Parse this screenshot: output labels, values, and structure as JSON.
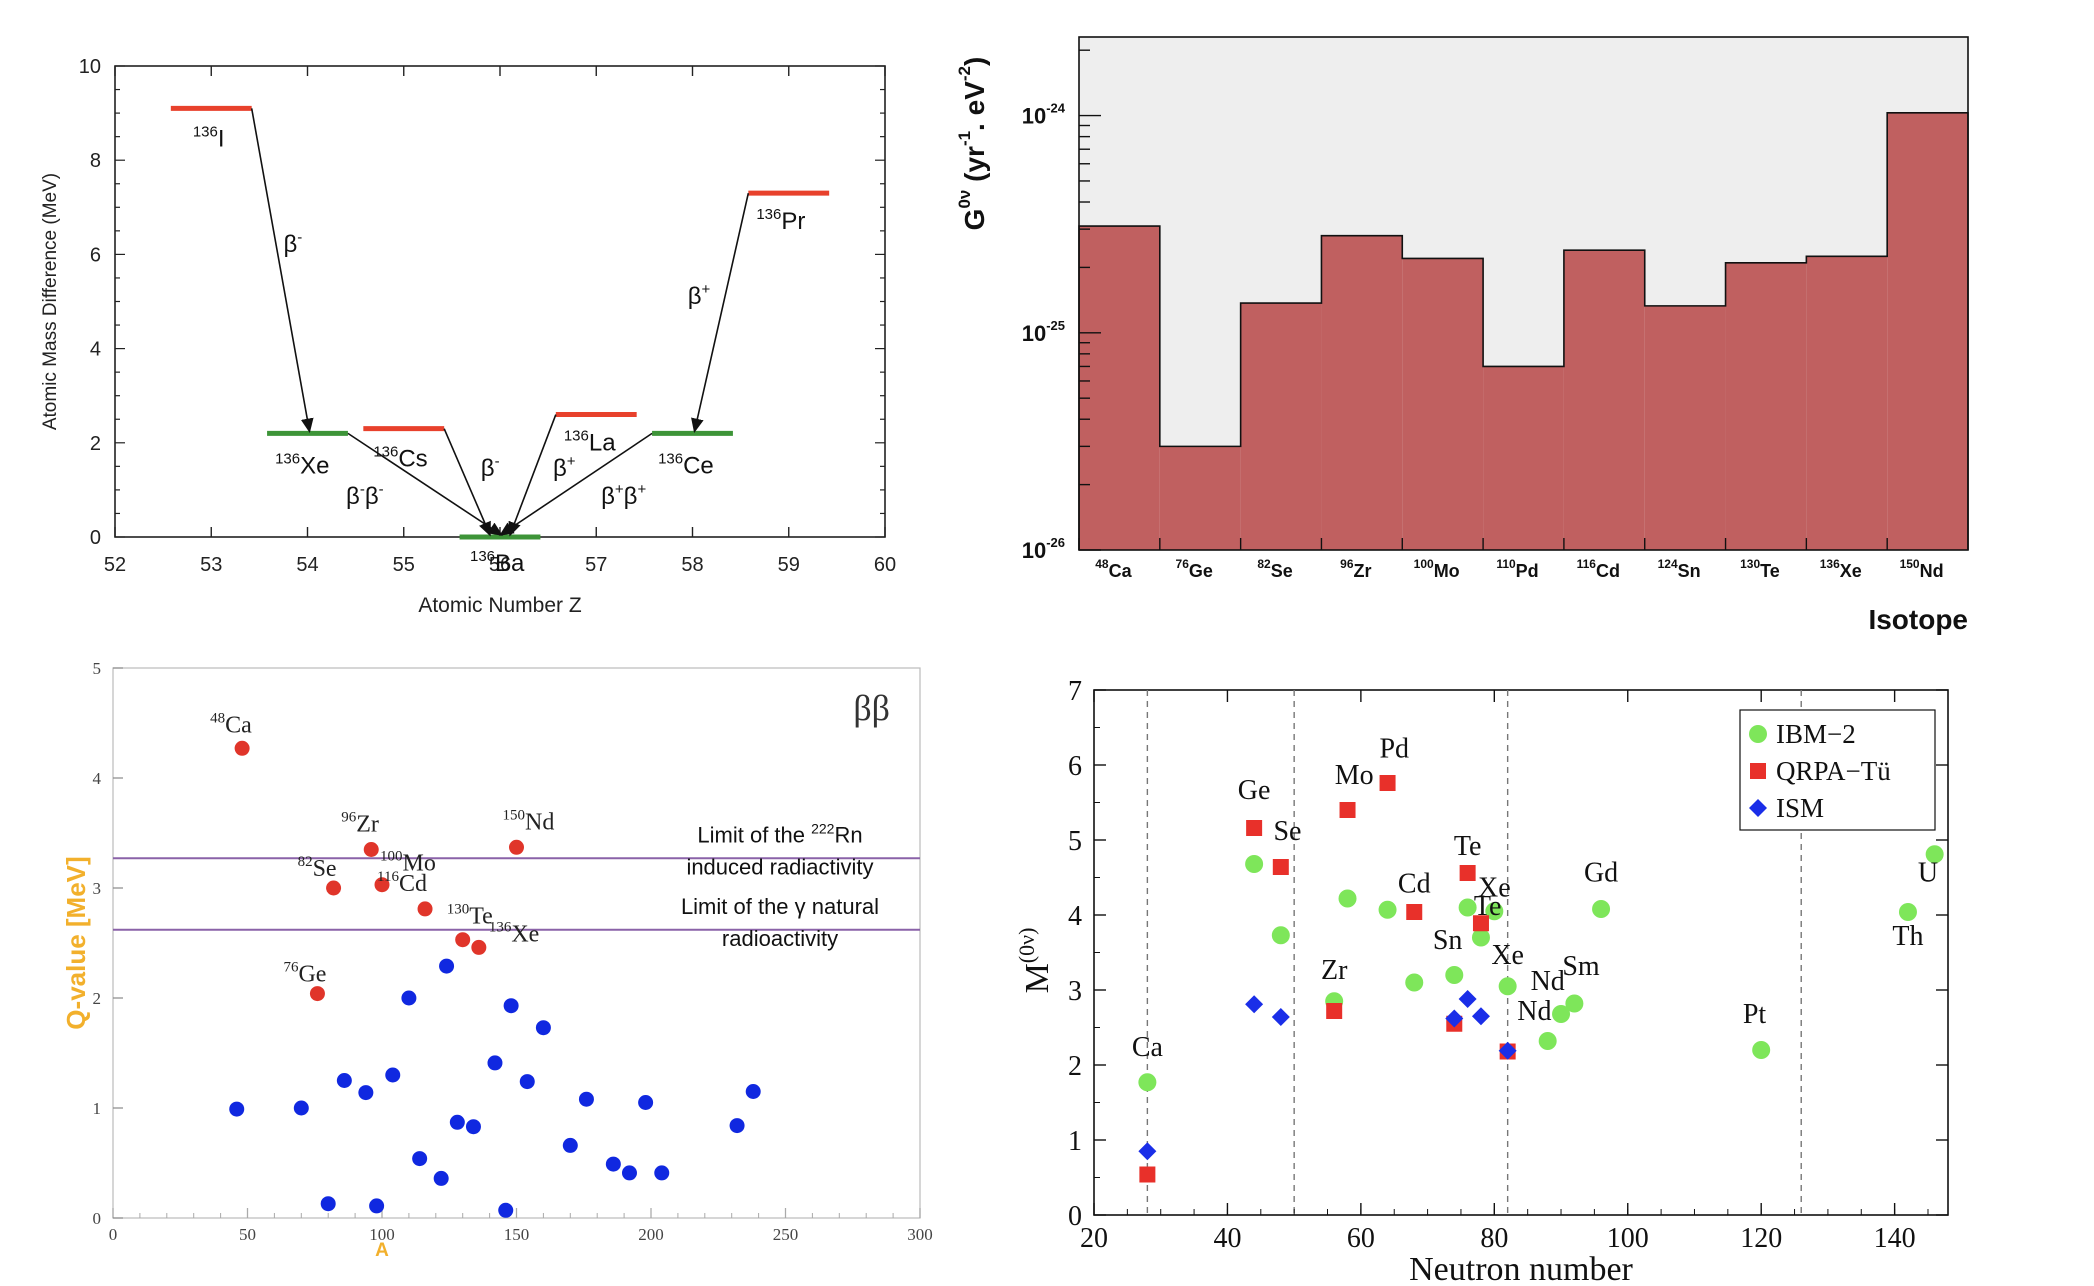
{
  "chart_data": [
    {
      "type": "scatter",
      "xlabel": "Atomic Number Z",
      "ylabel": "Atomic Mass Difference (MeV)",
      "xlim": [
        52,
        60
      ],
      "ylim": [
        0,
        10
      ],
      "xticks": [
        "52",
        "53",
        "54",
        "55",
        "56",
        "57",
        "58",
        "59",
        "60"
      ],
      "yticks": [
        "0",
        "2",
        "4",
        "6",
        "8",
        "10"
      ],
      "levels": [
        {
          "pre": "136",
          "label": "I",
          "z": 53,
          "mev": 9.1,
          "color": "#e8412c"
        },
        {
          "pre": "136",
          "label": "Xe",
          "z": 54,
          "mev": 2.2,
          "color": "#3d9438"
        },
        {
          "pre": "136",
          "label": "Cs",
          "z": 55,
          "mev": 2.3,
          "color": "#e8412c"
        },
        {
          "pre": "136",
          "label": "Ba",
          "z": 56,
          "mev": 0.0,
          "color": "#3d9438"
        },
        {
          "pre": "136",
          "label": "La",
          "z": 57,
          "mev": 2.6,
          "color": "#e8412c"
        },
        {
          "pre": "136",
          "label": "Ce",
          "z": 58,
          "mev": 2.2,
          "color": "#3d9438"
        },
        {
          "pre": "136",
          "label": "Pr",
          "z": 59,
          "mev": 7.3,
          "color": "#e8412c"
        }
      ],
      "transitions": [
        {
          "from": "I",
          "to": "Xe",
          "label": "β",
          "sup": "-"
        },
        {
          "from": "Cs",
          "to": "Ba",
          "label": "β",
          "sup": "-"
        },
        {
          "from": "La",
          "to": "Ba",
          "label": "β",
          "sup": "+"
        },
        {
          "from": "Pr",
          "to": "Ce",
          "label": "β",
          "sup": "+"
        },
        {
          "from": "Xe",
          "to": "Ba",
          "label": "β",
          "sup": "-",
          "label2": "β",
          "sup2": "-"
        },
        {
          "from": "Ce",
          "to": "Ba",
          "label": "β",
          "sup": "+",
          "label2": "β",
          "sup2": "+"
        }
      ]
    },
    {
      "type": "bar",
      "xlabel": "Isotope",
      "ylabel": "G",
      "ylabel_sup": "0ν",
      "ylabel_units": "(yr",
      "ylabel_units_sup1": "-1",
      "ylabel_units_mid": ". eV",
      "ylabel_units_sup2": "-2",
      "ylabel_units_end": ")",
      "yscale": "log",
      "ylim": [
        1e-26,
        2.3e-24
      ],
      "yticks": [
        {
          "base": "10",
          "exp": "-26",
          "value": 1e-26
        },
        {
          "base": "10",
          "exp": "-25",
          "value": 1e-25
        },
        {
          "base": "10",
          "exp": "-24",
          "value": 1e-24
        }
      ],
      "categories": [
        {
          "pre": "48",
          "name": "Ca"
        },
        {
          "pre": "76",
          "name": "Ge"
        },
        {
          "pre": "82",
          "name": "Se"
        },
        {
          "pre": "96",
          "name": "Zr"
        },
        {
          "pre": "100",
          "name": "Mo"
        },
        {
          "pre": "110",
          "name": "Pd"
        },
        {
          "pre": "116",
          "name": "Cd"
        },
        {
          "pre": "124",
          "name": "Sn"
        },
        {
          "pre": "130",
          "name": "Te"
        },
        {
          "pre": "136",
          "name": "Xe"
        },
        {
          "pre": "150",
          "name": "Nd"
        }
      ],
      "values": [
        3.1e-25,
        3e-26,
        1.37e-25,
        2.8e-25,
        2.2e-25,
        7e-26,
        2.4e-25,
        1.33e-25,
        2.1e-25,
        2.25e-25,
        1.03e-24
      ],
      "colors": {
        "bar": "#c06060",
        "background": "#eeeeee"
      }
    },
    {
      "type": "scatter",
      "xlabel": "A",
      "ylabel": "Q-value [MeV]",
      "xlim": [
        0,
        300
      ],
      "ylim": [
        0,
        5
      ],
      "title": "ββ",
      "xticks": [
        "0",
        "50",
        "100",
        "150",
        "200",
        "250",
        "300"
      ],
      "yticks": [
        "0",
        "1",
        "2",
        "3",
        "4",
        "5"
      ],
      "hlines": [
        {
          "y": 3.27,
          "text": "Limit of the ",
          "sup": "222",
          "text_end": "Rn",
          "line2": "induced radiactivity"
        },
        {
          "y": 2.62,
          "text": "Limit of the γ natural",
          "line2": "radioactivity"
        }
      ],
      "red_points": [
        {
          "x": 48,
          "y": 4.27,
          "pre": "48",
          "name": "Ca"
        },
        {
          "x": 76,
          "y": 2.04,
          "pre": "76",
          "name": "Ge"
        },
        {
          "x": 82,
          "y": 3.0,
          "pre": "82",
          "name": "Se"
        },
        {
          "x": 96,
          "y": 3.35,
          "pre": "96",
          "name": "Zr"
        },
        {
          "x": 100,
          "y": 3.03,
          "pre": "100",
          "name": "Mo"
        },
        {
          "x": 116,
          "y": 2.81,
          "pre": "116",
          "name": "Cd"
        },
        {
          "x": 130,
          "y": 2.53,
          "pre": "130",
          "name": "Te"
        },
        {
          "x": 136,
          "y": 2.46,
          "pre": "136",
          "name": "Xe"
        },
        {
          "x": 150,
          "y": 3.37,
          "pre": "150",
          "name": "Nd"
        }
      ],
      "blue_points": [
        {
          "x": 46,
          "y": 0.99
        },
        {
          "x": 70,
          "y": 1.0
        },
        {
          "x": 80,
          "y": 0.13
        },
        {
          "x": 86,
          "y": 1.25
        },
        {
          "x": 94,
          "y": 1.14
        },
        {
          "x": 98,
          "y": 0.11
        },
        {
          "x": 104,
          "y": 1.3
        },
        {
          "x": 110,
          "y": 2.0
        },
        {
          "x": 114,
          "y": 0.54
        },
        {
          "x": 122,
          "y": 0.36
        },
        {
          "x": 124,
          "y": 2.29
        },
        {
          "x": 128,
          "y": 0.87
        },
        {
          "x": 134,
          "y": 0.83
        },
        {
          "x": 142,
          "y": 1.41
        },
        {
          "x": 146,
          "y": 0.07
        },
        {
          "x": 148,
          "y": 1.93
        },
        {
          "x": 154,
          "y": 1.24
        },
        {
          "x": 160,
          "y": 1.73
        },
        {
          "x": 170,
          "y": 0.66
        },
        {
          "x": 176,
          "y": 1.08
        },
        {
          "x": 186,
          "y": 0.49
        },
        {
          "x": 192,
          "y": 0.41
        },
        {
          "x": 198,
          "y": 1.05
        },
        {
          "x": 204,
          "y": 0.41
        },
        {
          "x": 232,
          "y": 0.84
        },
        {
          "x": 238,
          "y": 1.15
        }
      ]
    },
    {
      "type": "scatter",
      "xlabel": "Neutron number",
      "ylabel": "M",
      "ylabel_sup": "(0ν)",
      "xlim": [
        20,
        148
      ],
      "ylim": [
        0,
        7
      ],
      "xticks": [
        "20",
        "40",
        "60",
        "80",
        "100",
        "120",
        "140"
      ],
      "yticks": [
        "0",
        "1",
        "2",
        "3",
        "4",
        "5",
        "6",
        "7"
      ],
      "vlines": [
        28,
        50,
        82,
        126
      ],
      "legend": {
        "position": "top-right",
        "entries": [
          "IBM−2",
          "QRPA−Tü",
          "ISM"
        ]
      },
      "series": [
        {
          "name": "IBM−2",
          "color": "#7ee65a",
          "marker": "circle",
          "points": [
            {
              "x": 28,
              "y": 1.77
            },
            {
              "x": 44,
              "y": 4.68
            },
            {
              "x": 48,
              "y": 3.73
            },
            {
              "x": 58,
              "y": 4.22
            },
            {
              "x": 56,
              "y": 2.85
            },
            {
              "x": 64,
              "y": 4.07
            },
            {
              "x": 68,
              "y": 3.1
            },
            {
              "x": 74,
              "y": 3.2
            },
            {
              "x": 76,
              "y": 4.1
            },
            {
              "x": 78,
              "y": 3.7
            },
            {
              "x": 80,
              "y": 4.05
            },
            {
              "x": 82,
              "y": 3.05
            },
            {
              "x": 88,
              "y": 2.32
            },
            {
              "x": 90,
              "y": 2.68
            },
            {
              "x": 92,
              "y": 2.82
            },
            {
              "x": 96,
              "y": 4.08
            },
            {
              "x": 120,
              "y": 2.2
            },
            {
              "x": 142,
              "y": 4.04
            },
            {
              "x": 146,
              "y": 4.81
            }
          ]
        },
        {
          "name": "QRPA−Tü",
          "color": "#e8302a",
          "marker": "square",
          "points": [
            {
              "x": 28,
              "y": 0.54
            },
            {
              "x": 44,
              "y": 5.16
            },
            {
              "x": 48,
              "y": 4.64
            },
            {
              "x": 56,
              "y": 2.72
            },
            {
              "x": 58,
              "y": 5.4
            },
            {
              "x": 64,
              "y": 5.76
            },
            {
              "x": 68,
              "y": 4.04
            },
            {
              "x": 74,
              "y": 2.55
            },
            {
              "x": 76,
              "y": 4.56
            },
            {
              "x": 78,
              "y": 3.89
            },
            {
              "x": 82,
              "y": 2.18
            }
          ]
        },
        {
          "name": "ISM",
          "color": "#1a2ee8",
          "marker": "diamond",
          "points": [
            {
              "x": 28,
              "y": 0.85
            },
            {
              "x": 44,
              "y": 2.81
            },
            {
              "x": 48,
              "y": 2.64
            },
            {
              "x": 74,
              "y": 2.62
            },
            {
              "x": 76,
              "y": 2.88
            },
            {
              "x": 78,
              "y": 2.65
            },
            {
              "x": 82,
              "y": 2.19
            }
          ]
        }
      ],
      "labels": [
        {
          "text": "Ca",
          "x": 28,
          "y": 2.12
        },
        {
          "text": "Ge",
          "x": 44,
          "y": 5.55
        },
        {
          "text": "Se",
          "x": 49,
          "y": 5.0
        },
        {
          "text": "Zr",
          "x": 56,
          "y": 3.15
        },
        {
          "text": "Mo",
          "x": 59,
          "y": 5.75
        },
        {
          "text": "Pd",
          "x": 65,
          "y": 6.1
        },
        {
          "text": "Cd",
          "x": 68,
          "y": 4.3
        },
        {
          "text": "Sn",
          "x": 73,
          "y": 3.55
        },
        {
          "text": "Te",
          "x": 76,
          "y": 4.8
        },
        {
          "text": "Xe",
          "x": 80,
          "y": 4.25
        },
        {
          "text": "Te",
          "x": 79,
          "y": 4.0
        },
        {
          "text": "Xe",
          "x": 82,
          "y": 3.35
        },
        {
          "text": "Nd",
          "x": 88,
          "y": 3.0
        },
        {
          "text": "Sm",
          "x": 93,
          "y": 3.2
        },
        {
          "text": "Nd",
          "x": 86,
          "y": 2.6
        },
        {
          "text": "Gd",
          "x": 96,
          "y": 4.45
        },
        {
          "text": "Pt",
          "x": 119,
          "y": 2.56
        },
        {
          "text": "U",
          "x": 145,
          "y": 4.45
        },
        {
          "text": "Th",
          "x": 142,
          "y": 3.6
        }
      ]
    }
  ]
}
